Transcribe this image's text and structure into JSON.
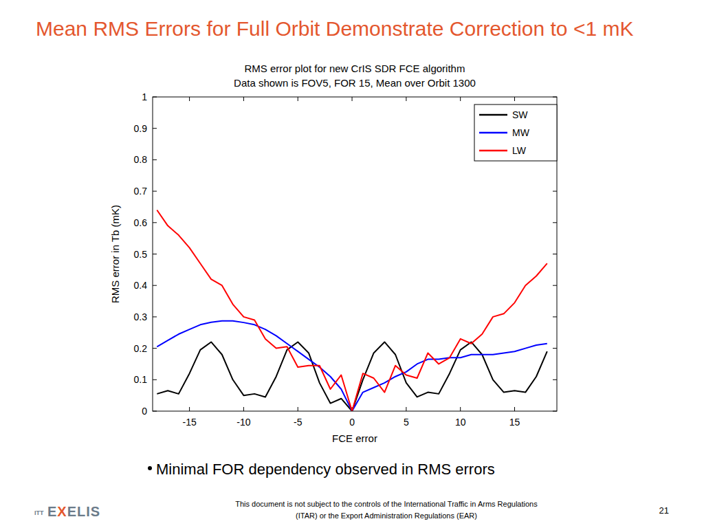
{
  "slide": {
    "title": "Mean RMS Errors for Full Orbit Demonstrate Correction to <1 mK",
    "bullet": "Minimal FOR dependency observed in RMS errors",
    "footer": "This document is not subject to the controls of the International Traffic in Arms Regulations (ITAR) or the Export Administration Regulations (EAR)",
    "page_number": "21",
    "logo_prefix": "ITT",
    "logo": "EXELIS"
  },
  "chart_data": {
    "type": "line",
    "title": "RMS error plot for new CrIS SDR FCE algorithm",
    "subtitle": "Data shown is FOV5, FOR 15, Mean over Orbit 1300",
    "x_label": "FCE error",
    "y_label": "RMS error in Tb (mK)",
    "x": [
      -18,
      -17,
      -16,
      -15,
      -14,
      -13,
      -12,
      -11,
      -10,
      -9,
      -8,
      -7,
      -6,
      -5,
      -4,
      -3,
      -2,
      -1,
      0,
      1,
      2,
      3,
      4,
      5,
      6,
      7,
      8,
      9,
      10,
      11,
      12,
      13,
      14,
      15,
      16,
      17,
      18
    ],
    "series": [
      {
        "name": "SW",
        "color": "#000000",
        "values": [
          0.055,
          0.065,
          0.055,
          0.12,
          0.195,
          0.22,
          0.18,
          0.1,
          0.05,
          0.055,
          0.045,
          0.11,
          0.195,
          0.22,
          0.185,
          0.09,
          0.025,
          0.04,
          0.0,
          0.1,
          0.185,
          0.22,
          0.18,
          0.09,
          0.045,
          0.06,
          0.055,
          0.12,
          0.195,
          0.22,
          0.18,
          0.1,
          0.06,
          0.065,
          0.06,
          0.11,
          0.19
        ]
      },
      {
        "name": "MW",
        "color": "#0000ff",
        "values": [
          0.205,
          0.225,
          0.245,
          0.26,
          0.275,
          0.283,
          0.287,
          0.287,
          0.282,
          0.275,
          0.26,
          0.24,
          0.215,
          0.19,
          0.165,
          0.14,
          0.11,
          0.07,
          0.0,
          0.06,
          0.075,
          0.09,
          0.11,
          0.125,
          0.15,
          0.165,
          0.165,
          0.17,
          0.17,
          0.18,
          0.18,
          0.18,
          0.185,
          0.19,
          0.2,
          0.21,
          0.215
        ]
      },
      {
        "name": "LW",
        "color": "#ff0000",
        "values": [
          0.64,
          0.59,
          0.56,
          0.52,
          0.47,
          0.42,
          0.4,
          0.34,
          0.3,
          0.29,
          0.23,
          0.2,
          0.205,
          0.14,
          0.145,
          0.145,
          0.07,
          0.115,
          0.0,
          0.12,
          0.105,
          0.06,
          0.145,
          0.115,
          0.105,
          0.185,
          0.15,
          0.17,
          0.23,
          0.215,
          0.245,
          0.3,
          0.31,
          0.345,
          0.4,
          0.43,
          0.47
        ]
      }
    ],
    "xlim": [
      -18.4,
      18.9
    ],
    "xticks": [
      -15,
      -10,
      -5,
      0,
      5,
      10,
      15
    ],
    "ylim": [
      0,
      1
    ],
    "yticks": [
      0,
      0.1,
      0.2,
      0.3,
      0.4,
      0.5,
      0.6,
      0.7,
      0.8,
      0.9,
      1
    ],
    "grid": false,
    "legend": "northeast"
  }
}
